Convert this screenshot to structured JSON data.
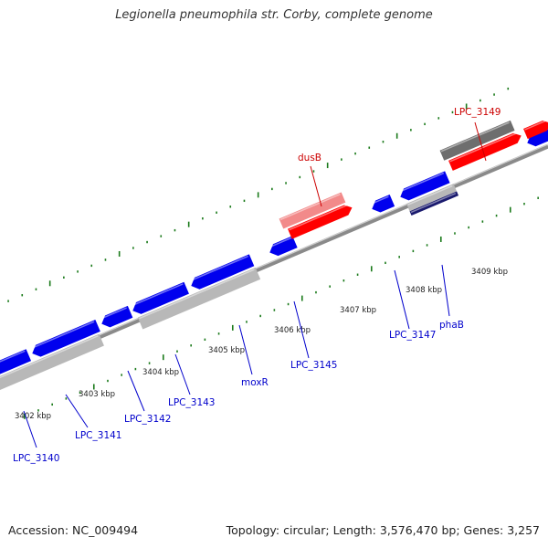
{
  "title": "Legionella pneumophila str. Corby, complete genome",
  "footer": {
    "accession": "Accession: NC_009494",
    "summary": "Topology: circular; Length: 3,576,470 bp; Genes: 3,257"
  },
  "colors": {
    "backbone": "#8a8a8a",
    "forward_cds": "#ff0000",
    "forward_cds_light": "#f28a8a",
    "reverse_cds": "#0000ee",
    "gray_gene": "#b8b8b8",
    "dark_gray_gene": "#6e6e6e",
    "label_blue": "#0000cc",
    "label_red": "#cc0000",
    "tick": "#1a7a1a"
  },
  "ruler": {
    "unit": "kbp",
    "labels": [
      {
        "text": "3402 kbp",
        "kb": 3402
      },
      {
        "text": "3403 kbp",
        "kb": 3403
      },
      {
        "text": "3404 kbp",
        "kb": 3404
      },
      {
        "text": "3405 kbp",
        "kb": 3405
      },
      {
        "text": "3406 kbp",
        "kb": 3406
      },
      {
        "text": "3407 kbp",
        "kb": 3407
      },
      {
        "text": "3408 kbp",
        "kb": 3408
      },
      {
        "text": "3409 kbp",
        "kb": 3409
      }
    ]
  },
  "gene_labels": [
    {
      "text": "LPC_3140",
      "color": "blue"
    },
    {
      "text": "LPC_3141",
      "color": "blue"
    },
    {
      "text": "LPC_3142",
      "color": "blue"
    },
    {
      "text": "LPC_3143",
      "color": "blue"
    },
    {
      "text": "moxR",
      "color": "blue"
    },
    {
      "text": "LPC_3145",
      "color": "blue"
    },
    {
      "text": "LPC_3147",
      "color": "blue"
    },
    {
      "text": "phaB",
      "color": "blue"
    },
    {
      "text": "dusB",
      "color": "red"
    },
    {
      "text": "LPC_3149",
      "color": "red"
    }
  ]
}
